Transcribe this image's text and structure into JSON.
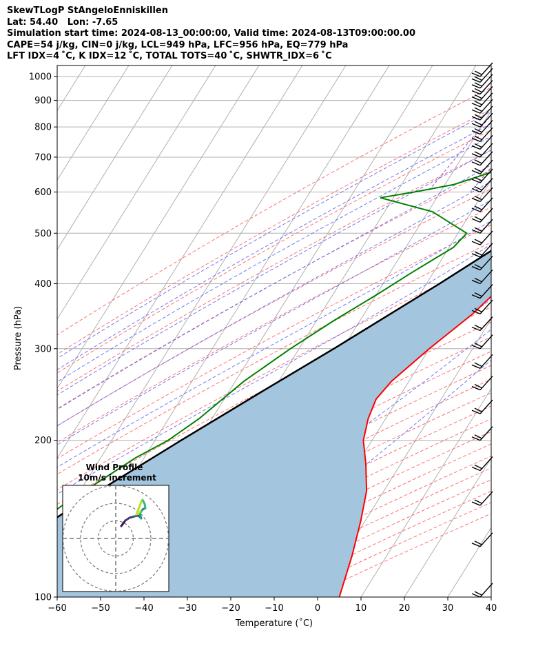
{
  "header": {
    "title": "SkewTLogP StAngeloEnniskillen",
    "location": "Lat: 54.40   Lon: -7.65",
    "times": "Simulation start time: 2024-08-13_00:00:00, Valid time: 2024-08-13T09:00:00.00",
    "indices1": "CAPE=54 j/kg, CIN=0 j/kg, LCL=949 hPa, LFC=956 hPa, EQ=779 hPa",
    "indices2": "LFT IDX=4 ˚C, K IDX=12 ˚C, TOTAL TOTS=40 ˚C, SHWTR_IDX=6 ˚C"
  },
  "chart_data": {
    "type": "line",
    "subtype": "skew-T log-P",
    "xlabel": "Temperature (˚C)",
    "ylabel": "Pressure (hPa)",
    "xlim": [
      -60,
      40
    ],
    "ylim": [
      1050,
      100
    ],
    "x_ticks": [
      "−60",
      "−50",
      "−40",
      "−30",
      "−20",
      "−10",
      "0",
      "10",
      "20",
      "30",
      "40"
    ],
    "y_ticks": [
      {
        "p": 100,
        "label": "100"
      },
      {
        "p": 200,
        "label": "200"
      },
      {
        "p": 300,
        "label": "300"
      },
      {
        "p": 400,
        "label": "400"
      },
      {
        "p": 500,
        "label": "500"
      },
      {
        "p": 600,
        "label": "600"
      },
      {
        "p": 700,
        "label": "700"
      },
      {
        "p": 800,
        "label": "800"
      },
      {
        "p": 900,
        "label": "900"
      },
      {
        "p": 1000,
        "label": "1000"
      }
    ],
    "grid": true,
    "series": [
      {
        "role": "temperature",
        "color": "#ff0000",
        "points": [
          [
            990,
            17
          ],
          [
            950,
            16
          ],
          [
            900,
            14
          ],
          [
            850,
            13.5
          ],
          [
            800,
            13.5
          ],
          [
            780,
            14.5
          ],
          [
            700,
            15
          ],
          [
            600,
            13
          ],
          [
            550,
            11
          ],
          [
            500,
            6
          ],
          [
            450,
            2
          ],
          [
            400,
            -2
          ],
          [
            350,
            -5
          ],
          [
            300,
            -10
          ],
          [
            260,
            -14
          ],
          [
            240,
            -15
          ],
          [
            220,
            -14
          ],
          [
            200,
            -12
          ],
          [
            180,
            -8
          ],
          [
            160,
            -4
          ],
          [
            140,
            -1
          ],
          [
            120,
            2
          ],
          [
            100,
            5
          ]
        ]
      },
      {
        "role": "dewpoint",
        "color": "#008000",
        "points": [
          [
            990,
            16
          ],
          [
            950,
            14
          ],
          [
            900,
            12
          ],
          [
            850,
            10
          ],
          [
            800,
            5
          ],
          [
            750,
            -5
          ],
          [
            700,
            -13
          ],
          [
            650,
            -22
          ],
          [
            620,
            -28
          ],
          [
            600,
            -36
          ],
          [
            585,
            -43
          ],
          [
            550,
            -29
          ],
          [
            500,
            -18
          ],
          [
            470,
            -19
          ],
          [
            420,
            -25
          ],
          [
            380,
            -30
          ],
          [
            340,
            -36
          ],
          [
            300,
            -42
          ],
          [
            260,
            -48
          ],
          [
            220,
            -53
          ],
          [
            200,
            -57
          ],
          [
            185,
            -62
          ],
          [
            170,
            -66
          ],
          [
            150,
            -72
          ],
          [
            125,
            -79
          ],
          [
            100,
            -88
          ]
        ]
      },
      {
        "role": "parcel",
        "color": "#000000",
        "points": [
          [
            990,
            19
          ],
          [
            950,
            16
          ],
          [
            900,
            14
          ],
          [
            800,
            11
          ],
          [
            700,
            7.5
          ],
          [
            600,
            2
          ],
          [
            500,
            -6
          ],
          [
            400,
            -17
          ],
          [
            300,
            -32
          ],
          [
            250,
            -42
          ],
          [
            200,
            -54
          ],
          [
            150,
            -69
          ],
          [
            100,
            -88
          ]
        ]
      }
    ],
    "cape_fill_color": "#a3c6de",
    "wind_barbs": {
      "color": "#000000"
    },
    "hodograph": {
      "title": "Wind Profile",
      "subtitle": "10m/s increment",
      "rings": 3
    }
  }
}
